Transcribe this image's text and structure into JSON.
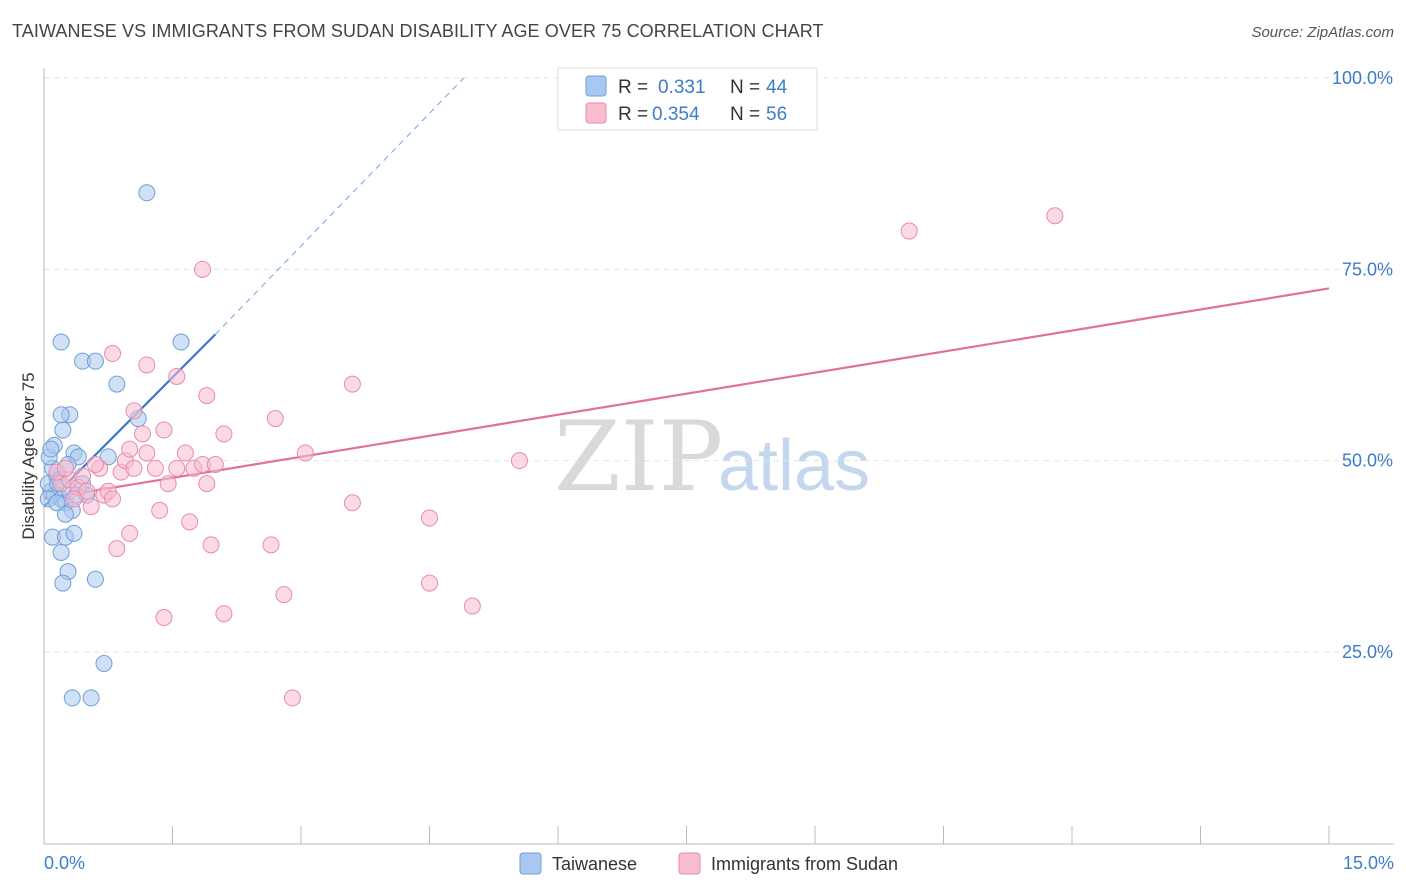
{
  "header": {
    "title": "TAIWANESE VS IMMIGRANTS FROM SUDAN DISABILITY AGE OVER 75 CORRELATION CHART",
    "source": "Source: ZipAtlas.com"
  },
  "watermark": {
    "zip": "ZIP",
    "atlas": "atlas"
  },
  "legend": {
    "r_label": "R =",
    "n_label": "N =",
    "rows": [
      {
        "r": "0.331",
        "n": "44",
        "color": "#a9c8ef",
        "stroke": "#6f9fd8"
      },
      {
        "r": "0.354",
        "n": "56",
        "color": "#f7bcd0",
        "stroke": "#e88aab"
      }
    ]
  },
  "bottom_legend": {
    "items": [
      {
        "label": "Taiwanese",
        "color": "#a9c8ef",
        "stroke": "#6f9fd8"
      },
      {
        "label": "Immigrants from Sudan",
        "color": "#f7bcd0",
        "stroke": "#e88aab"
      }
    ]
  },
  "chart_data": {
    "type": "scatter",
    "title": "TAIWANESE VS IMMIGRANTS FROM SUDAN DISABILITY AGE OVER 75 CORRELATION CHART",
    "xlabel": "",
    "ylabel": "Disability Age Over 75",
    "xlim": [
      0,
      15
    ],
    "ylim": [
      0,
      102
    ],
    "x_tick_labels": [
      "0.0%",
      "15.0%"
    ],
    "y_ticks": [
      25,
      50,
      75,
      100
    ],
    "y_tick_labels": [
      "25.0%",
      "50.0%",
      "75.0%",
      "100.0%"
    ],
    "grid": true,
    "legend_position": "top-center",
    "series": [
      {
        "name": "Taiwanese",
        "color": "#a9c8ef",
        "stroke": "#6f9fd8",
        "line_color": "#3a78d0",
        "r": 0.331,
        "n": 44,
        "trend": {
          "x0": 0.0,
          "y0": 44.0,
          "x1": 2.0,
          "y1": 66.5,
          "dash_to_x": 4.9,
          "dash_to_y": 100.0
        },
        "points": [
          [
            0.08,
            46.0
          ],
          [
            0.12,
            45.5
          ],
          [
            0.05,
            47.0
          ],
          [
            0.15,
            48.0
          ],
          [
            0.1,
            49.0
          ],
          [
            0.06,
            50.5
          ],
          [
            0.2,
            45.0
          ],
          [
            0.25,
            44.5
          ],
          [
            0.3,
            46.0
          ],
          [
            0.18,
            47.5
          ],
          [
            0.12,
            52.0
          ],
          [
            0.22,
            54.0
          ],
          [
            0.3,
            56.0
          ],
          [
            0.2,
            56.0
          ],
          [
            0.35,
            51.0
          ],
          [
            0.4,
            50.5
          ],
          [
            0.28,
            49.5
          ],
          [
            0.45,
            47.0
          ],
          [
            0.38,
            45.5
          ],
          [
            0.33,
            43.5
          ],
          [
            0.25,
            43.0
          ],
          [
            0.1,
            40.0
          ],
          [
            0.25,
            40.0
          ],
          [
            0.35,
            40.5
          ],
          [
            0.2,
            38.0
          ],
          [
            0.28,
            35.5
          ],
          [
            0.22,
            34.0
          ],
          [
            0.6,
            34.5
          ],
          [
            0.7,
            23.5
          ],
          [
            0.33,
            19.0
          ],
          [
            0.55,
            19.0
          ],
          [
            0.2,
            65.5
          ],
          [
            0.45,
            63.0
          ],
          [
            0.6,
            63.0
          ],
          [
            0.85,
            60.0
          ],
          [
            1.1,
            55.5
          ],
          [
            1.6,
            65.5
          ],
          [
            1.2,
            85.0
          ],
          [
            0.75,
            50.5
          ],
          [
            0.05,
            45.0
          ],
          [
            0.15,
            44.5
          ],
          [
            0.5,
            45.5
          ],
          [
            0.08,
            51.5
          ],
          [
            0.16,
            47.0
          ]
        ]
      },
      {
        "name": "Immigrants from Sudan",
        "color": "#f7bcd0",
        "stroke": "#e88aab",
        "line_color": "#e2709a",
        "r": 0.354,
        "n": 56,
        "trend": {
          "x0": 0.0,
          "y0": 45.0,
          "x1": 15.0,
          "y1": 72.5
        },
        "points": [
          [
            0.2,
            47.0
          ],
          [
            0.3,
            47.5
          ],
          [
            0.4,
            46.5
          ],
          [
            0.5,
            46.0
          ],
          [
            0.15,
            48.5
          ],
          [
            0.25,
            49.0
          ],
          [
            0.35,
            45.0
          ],
          [
            0.45,
            48.0
          ],
          [
            0.55,
            44.0
          ],
          [
            0.65,
            49.0
          ],
          [
            0.7,
            45.5
          ],
          [
            0.75,
            46.0
          ],
          [
            0.8,
            45.0
          ],
          [
            0.9,
            48.5
          ],
          [
            0.95,
            50.0
          ],
          [
            1.0,
            51.5
          ],
          [
            1.05,
            56.5
          ],
          [
            1.15,
            53.5
          ],
          [
            1.2,
            51.0
          ],
          [
            1.3,
            49.0
          ],
          [
            1.4,
            54.0
          ],
          [
            1.45,
            47.0
          ],
          [
            1.55,
            49.0
          ],
          [
            1.65,
            51.0
          ],
          [
            1.75,
            49.0
          ],
          [
            1.85,
            49.5
          ],
          [
            1.9,
            47.0
          ],
          [
            2.1,
            53.5
          ],
          [
            2.0,
            49.5
          ],
          [
            2.7,
            55.5
          ],
          [
            3.05,
            51.0
          ],
          [
            1.35,
            43.5
          ],
          [
            1.7,
            42.0
          ],
          [
            0.85,
            38.5
          ],
          [
            1.0,
            40.5
          ],
          [
            1.95,
            39.0
          ],
          [
            2.65,
            39.0
          ],
          [
            1.4,
            29.5
          ],
          [
            2.1,
            30.0
          ],
          [
            2.8,
            32.5
          ],
          [
            3.6,
            44.5
          ],
          [
            4.5,
            42.5
          ],
          [
            4.5,
            34.0
          ],
          [
            5.0,
            31.0
          ],
          [
            5.55,
            50.0
          ],
          [
            3.6,
            60.0
          ],
          [
            1.9,
            58.5
          ],
          [
            1.55,
            61.0
          ],
          [
            1.2,
            62.5
          ],
          [
            0.8,
            64.0
          ],
          [
            1.85,
            75.0
          ],
          [
            2.9,
            19.0
          ],
          [
            10.1,
            80.0
          ],
          [
            11.8,
            82.0
          ],
          [
            1.05,
            49.0
          ],
          [
            0.6,
            49.5
          ]
        ]
      }
    ]
  }
}
